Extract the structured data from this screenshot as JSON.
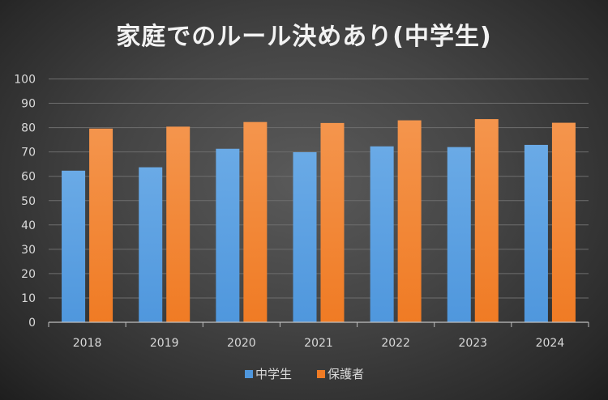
{
  "chart_data": {
    "type": "bar",
    "title": "家庭でのルール決めあり(中学生)",
    "categories": [
      "2018",
      "2019",
      "2020",
      "2021",
      "2022",
      "2023",
      "2024"
    ],
    "series": [
      {
        "name": "中学生",
        "values": [
          62.3,
          63.7,
          71.3,
          69.9,
          72.3,
          72.0,
          72.9
        ],
        "color": "#4f97dd",
        "colorTop": "#6aaae6"
      },
      {
        "name": "保護者",
        "values": [
          79.6,
          80.4,
          82.3,
          81.9,
          83.0,
          83.5,
          82.0
        ],
        "color": "#f07b24",
        "colorTop": "#f4954d"
      }
    ],
    "ylim": [
      0,
      100
    ],
    "yticks": [
      0,
      10,
      20,
      30,
      40,
      50,
      60,
      70,
      80,
      90,
      100
    ],
    "xlabel": "",
    "ylabel": "",
    "grid": true,
    "legend_position": "bottom"
  }
}
